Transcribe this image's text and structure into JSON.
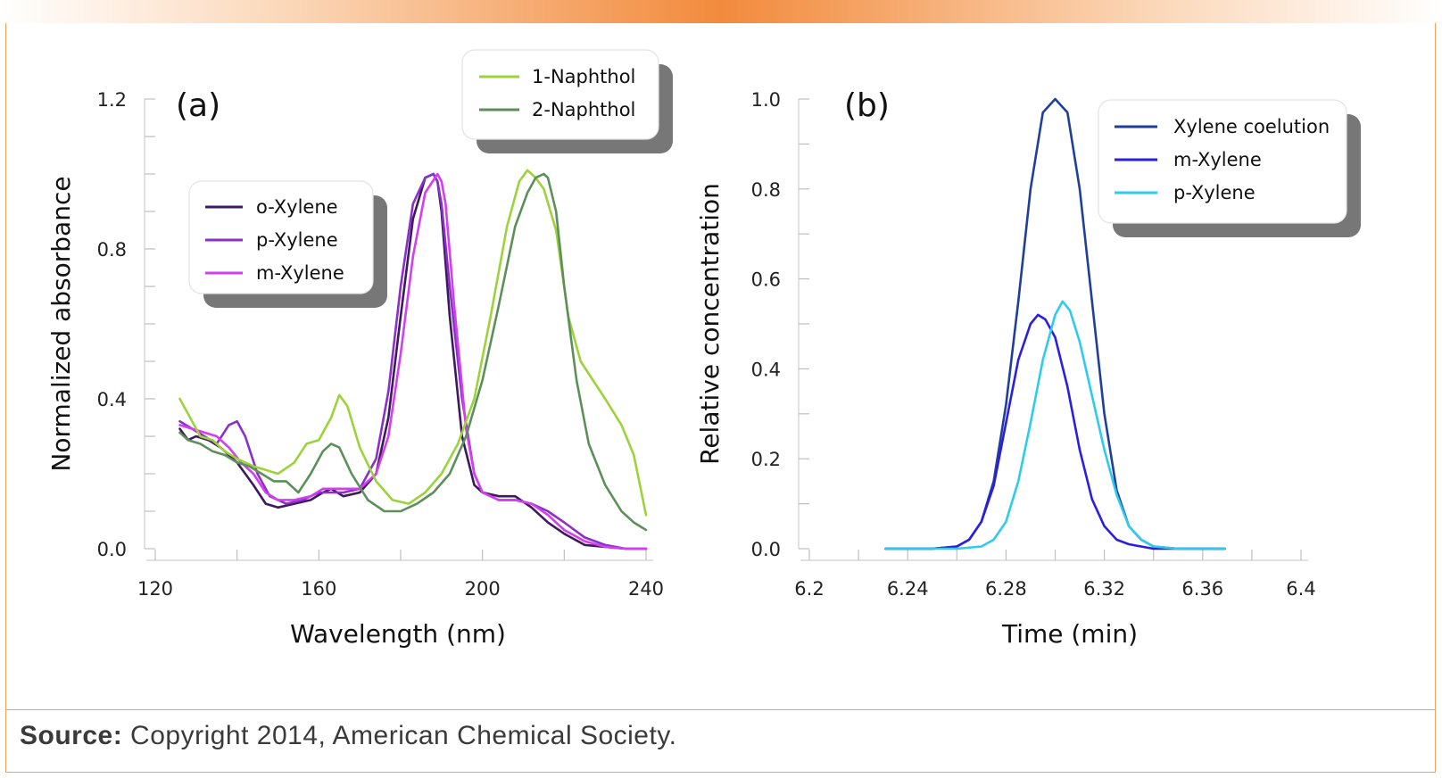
{
  "source": {
    "label": "Source:",
    "text": " Copyright 2014, American Chemical Society."
  },
  "chart_data": [
    {
      "type": "line",
      "panel_label": "(a)",
      "xlabel": "Wavelength (nm)",
      "ylabel": "Normalized absorbance",
      "xlim": [
        120,
        240
      ],
      "ylim": [
        0,
        1.2
      ],
      "xticks": [
        120,
        160,
        200,
        240
      ],
      "yticks": [
        0,
        0.4,
        0.8,
        1.2
      ],
      "ytick_labels": [
        "0.0",
        "0.4",
        "0.8",
        "1.2"
      ],
      "xtick_labels": [
        "120",
        "160",
        "200",
        "240"
      ],
      "legends": [
        {
          "entries": [
            "o-Xylene",
            "p-Xylene",
            "m-Xylene"
          ]
        },
        {
          "entries": [
            "1-Naphthol",
            "2-Naphthol"
          ]
        }
      ],
      "series": [
        {
          "name": "o-Xylene",
          "color": "#3d1a5e",
          "x": [
            126,
            128,
            130,
            133,
            136,
            140,
            144,
            147,
            150,
            154,
            158,
            161,
            163,
            166,
            170,
            174,
            177,
            180,
            183,
            186,
            188,
            189,
            190,
            192,
            195,
            198,
            200,
            204,
            208,
            212,
            216,
            220,
            225,
            230,
            235,
            240
          ],
          "y": [
            0.32,
            0.29,
            0.3,
            0.29,
            0.27,
            0.23,
            0.17,
            0.12,
            0.11,
            0.12,
            0.13,
            0.15,
            0.16,
            0.14,
            0.15,
            0.2,
            0.35,
            0.62,
            0.88,
            0.99,
            1.0,
            0.98,
            0.9,
            0.62,
            0.3,
            0.17,
            0.15,
            0.14,
            0.14,
            0.11,
            0.07,
            0.04,
            0.01,
            0.005,
            0.0,
            0.0
          ]
        },
        {
          "name": "p-Xylene",
          "color": "#8b2fc9",
          "x": [
            126,
            129,
            132,
            135,
            138,
            140,
            142,
            145,
            148,
            152,
            156,
            160,
            163,
            166,
            170,
            174,
            177,
            180,
            183,
            186,
            188,
            189,
            190,
            192,
            195,
            198,
            200,
            204,
            208,
            212,
            216,
            220,
            225,
            230,
            235,
            240
          ],
          "y": [
            0.34,
            0.32,
            0.3,
            0.28,
            0.33,
            0.34,
            0.3,
            0.2,
            0.14,
            0.12,
            0.13,
            0.15,
            0.15,
            0.15,
            0.16,
            0.24,
            0.42,
            0.7,
            0.92,
            0.99,
            1.0,
            0.98,
            0.92,
            0.7,
            0.4,
            0.2,
            0.15,
            0.13,
            0.13,
            0.12,
            0.1,
            0.07,
            0.03,
            0.01,
            0.0,
            0.0
          ]
        },
        {
          "name": "m-Xylene",
          "color": "#d23ef0",
          "x": [
            126,
            129,
            132,
            135,
            138,
            141,
            144,
            147,
            150,
            154,
            158,
            161,
            163,
            166,
            170,
            174,
            177,
            180,
            183,
            186,
            189,
            190,
            191,
            193,
            196,
            198,
            200,
            204,
            208,
            212,
            216,
            220,
            225,
            230,
            235,
            240
          ],
          "y": [
            0.33,
            0.32,
            0.31,
            0.3,
            0.27,
            0.23,
            0.2,
            0.15,
            0.13,
            0.13,
            0.14,
            0.16,
            0.16,
            0.16,
            0.16,
            0.2,
            0.3,
            0.52,
            0.78,
            0.95,
            1.0,
            0.98,
            0.92,
            0.66,
            0.32,
            0.2,
            0.15,
            0.13,
            0.13,
            0.12,
            0.09,
            0.05,
            0.02,
            0.005,
            0.0,
            0.0
          ]
        },
        {
          "name": "1-Naphthol",
          "color": "#9cd23a",
          "x": [
            126,
            128,
            131,
            134,
            137,
            140,
            144,
            147,
            150,
            154,
            157,
            160,
            163,
            165,
            167,
            170,
            174,
            178,
            182,
            186,
            190,
            194,
            198,
            202,
            206,
            209,
            211,
            213,
            215,
            218,
            221,
            224,
            227,
            230,
            234,
            237,
            240
          ],
          "y": [
            0.4,
            0.36,
            0.3,
            0.29,
            0.26,
            0.24,
            0.22,
            0.21,
            0.2,
            0.23,
            0.28,
            0.29,
            0.35,
            0.41,
            0.38,
            0.27,
            0.18,
            0.13,
            0.12,
            0.15,
            0.2,
            0.28,
            0.4,
            0.62,
            0.86,
            0.98,
            1.01,
            0.99,
            0.96,
            0.85,
            0.62,
            0.5,
            0.45,
            0.4,
            0.33,
            0.25,
            0.09
          ]
        },
        {
          "name": "2-Naphthol",
          "color": "#5d8f5a",
          "x": [
            126,
            128,
            131,
            134,
            137,
            140,
            143,
            146,
            149,
            152,
            155,
            158,
            161,
            163,
            165,
            168,
            172,
            176,
            180,
            184,
            188,
            192,
            196,
            200,
            204,
            208,
            211,
            213,
            215,
            216,
            218,
            220,
            223,
            226,
            230,
            234,
            237,
            240
          ],
          "y": [
            0.31,
            0.29,
            0.28,
            0.26,
            0.25,
            0.23,
            0.22,
            0.2,
            0.18,
            0.18,
            0.15,
            0.2,
            0.26,
            0.28,
            0.27,
            0.2,
            0.13,
            0.1,
            0.1,
            0.12,
            0.15,
            0.2,
            0.3,
            0.45,
            0.65,
            0.86,
            0.95,
            0.99,
            1.0,
            0.99,
            0.9,
            0.7,
            0.45,
            0.28,
            0.17,
            0.1,
            0.07,
            0.05
          ]
        }
      ]
    },
    {
      "type": "line",
      "panel_label": "(b)",
      "xlabel": "Time (min)",
      "ylabel": "Relative concentration",
      "xlim": [
        6.2,
        6.4
      ],
      "ylim": [
        0,
        1.0
      ],
      "xticks": [
        6.2,
        6.24,
        6.28,
        6.32,
        6.36,
        6.4
      ],
      "xtick_labels": [
        "6.2",
        "6.24",
        "6.28",
        "6.32",
        "6.36",
        "6.4"
      ],
      "yticks": [
        0,
        0.2,
        0.4,
        0.6,
        0.8,
        1.0
      ],
      "ytick_labels": [
        "0.0",
        "0.2",
        "0.4",
        "0.6",
        "0.8",
        "1.0"
      ],
      "legends": [
        {
          "entries": [
            "Xylene coelution",
            "m-Xylene",
            "p-Xylene"
          ]
        }
      ],
      "series": [
        {
          "name": "Xylene coelution",
          "color": "#1f3f9a",
          "x": [
            6.231,
            6.24,
            6.25,
            6.26,
            6.265,
            6.27,
            6.275,
            6.28,
            6.285,
            6.29,
            6.295,
            6.3,
            6.305,
            6.31,
            6.315,
            6.32,
            6.325,
            6.33,
            6.335,
            6.34,
            6.35,
            6.36,
            6.369
          ],
          "y": [
            0.0,
            0.0,
            0.0,
            0.005,
            0.02,
            0.06,
            0.15,
            0.32,
            0.55,
            0.8,
            0.97,
            1.0,
            0.97,
            0.8,
            0.55,
            0.3,
            0.13,
            0.05,
            0.02,
            0.005,
            0.0,
            0.0,
            0.0
          ]
        },
        {
          "name": "m-Xylene",
          "color": "#2a1fe0",
          "x": [
            6.231,
            6.24,
            6.25,
            6.26,
            6.265,
            6.27,
            6.275,
            6.28,
            6.285,
            6.29,
            6.293,
            6.296,
            6.3,
            6.305,
            6.31,
            6.315,
            6.32,
            6.325,
            6.33,
            6.34,
            6.35,
            6.36,
            6.369
          ],
          "y": [
            0.0,
            0.0,
            0.0,
            0.005,
            0.02,
            0.06,
            0.14,
            0.28,
            0.42,
            0.5,
            0.52,
            0.51,
            0.47,
            0.36,
            0.22,
            0.11,
            0.05,
            0.02,
            0.01,
            0.0,
            0.0,
            0.0,
            0.0
          ]
        },
        {
          "name": "p-Xylene",
          "color": "#2ecbef",
          "x": [
            6.231,
            6.24,
            6.25,
            6.26,
            6.27,
            6.275,
            6.28,
            6.285,
            6.29,
            6.295,
            6.3,
            6.303,
            6.306,
            6.31,
            6.315,
            6.32,
            6.325,
            6.33,
            6.335,
            6.34,
            6.35,
            6.36,
            6.369
          ],
          "y": [
            0.0,
            0.0,
            0.0,
            0.0,
            0.005,
            0.02,
            0.06,
            0.15,
            0.28,
            0.42,
            0.52,
            0.55,
            0.53,
            0.46,
            0.34,
            0.22,
            0.12,
            0.05,
            0.02,
            0.005,
            0.0,
            0.0,
            0.0
          ]
        }
      ]
    }
  ]
}
